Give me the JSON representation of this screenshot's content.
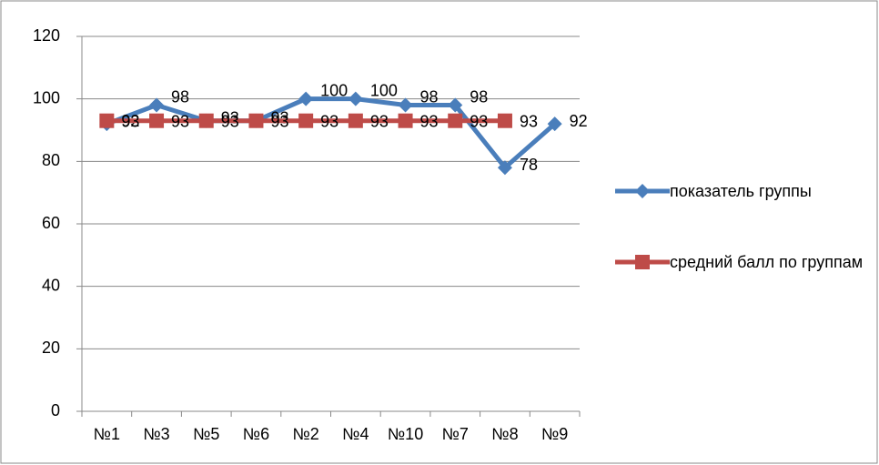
{
  "chart_data": {
    "type": "line",
    "categories": [
      "№1",
      "№3",
      "№5",
      "№6",
      "№2",
      "№4",
      "№10",
      "№7",
      "№8",
      "№9"
    ],
    "series": [
      {
        "name": "показатель группы",
        "color": "#4a7ebb",
        "marker": "diamond",
        "values": [
          92,
          98,
          93,
          93,
          100,
          100,
          98,
          98,
          78,
          92
        ]
      },
      {
        "name": "средний балл по группам",
        "color": "#be4b48",
        "marker": "square",
        "values": [
          93,
          93,
          93,
          93,
          93,
          93,
          93,
          93,
          93,
          null
        ]
      }
    ],
    "ylim": [
      0,
      120
    ],
    "yticks": [
      0,
      20,
      40,
      60,
      80,
      100,
      120
    ],
    "grid": true,
    "legend": "right",
    "data_labels": true
  }
}
